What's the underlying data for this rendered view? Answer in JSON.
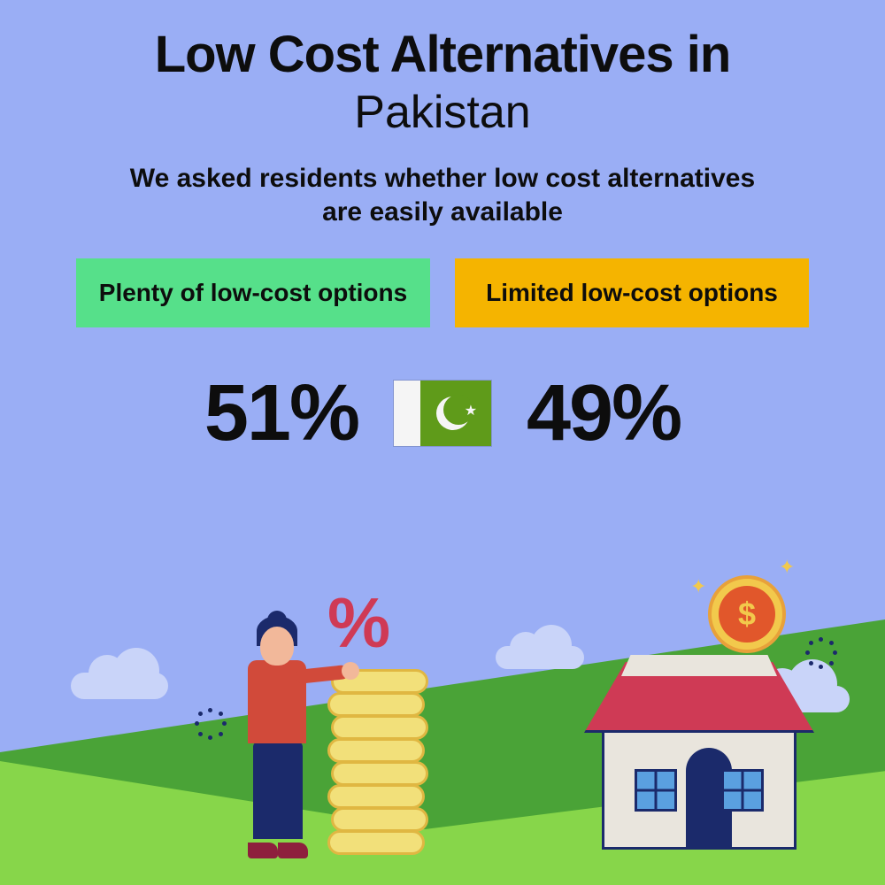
{
  "title": {
    "line1": "Low Cost Alternatives in",
    "line2": "Pakistan"
  },
  "intro": "We asked residents whether low cost alternatives are easily available",
  "options": {
    "left": {
      "label": "Plenty of low-cost options",
      "bg": "#56e08a",
      "pct": "51%"
    },
    "right": {
      "label": "Limited low-cost options",
      "bg": "#f5b400",
      "pct": "49%"
    }
  },
  "flag": {
    "white": "#f5f5f5",
    "green": "#5f9b1a"
  },
  "colors": {
    "page_bg": "#9aaef5",
    "text": "#0d0d0d",
    "hill_dark": "#4aa337",
    "hill_light": "#87d64a",
    "cloud": "#c9d4f9",
    "coin_gold": "#f2c94c",
    "coin_ring": "#e8a13a",
    "coin_center": "#e1572b",
    "house_wall": "#e9e5dd",
    "house_outline": "#1b2a6b",
    "roof": "#cf3a55",
    "window": "#5aa0e0",
    "shirt": "#d14a3a",
    "skin": "#f2b89a",
    "pants": "#1b2a6b",
    "shoe": "#8e1f3d",
    "stack_coin": "#f2e07a",
    "stack_ring": "#e0b742",
    "percent": "#cf3a55"
  },
  "icons": {
    "dollar": "$",
    "percent": "%",
    "sparkle": "✦"
  }
}
